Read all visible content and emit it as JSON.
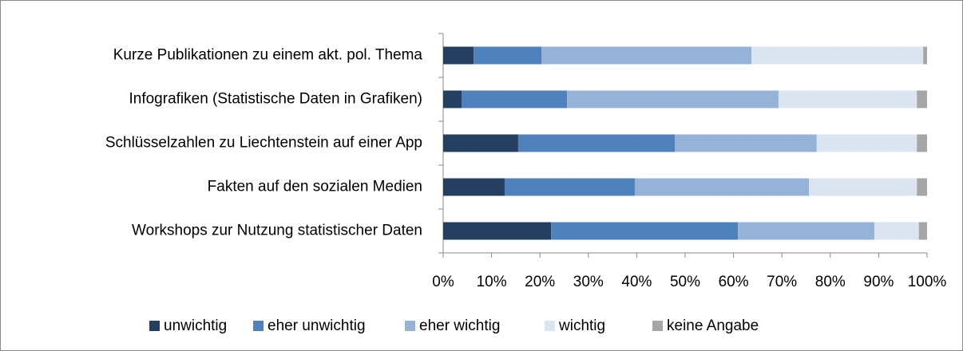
{
  "chart_data": {
    "type": "stacked_barh",
    "categories": [
      "Kurze Publikationen zu einem akt. pol. Thema",
      "Infografiken (Statistische Daten in Grafiken)",
      "Schlüsselzahlen zu Liechtenstein auf einer App",
      "Fakten auf den sozialen Medien",
      "Workshops zur Nutzung statistischer Daten"
    ],
    "series": [
      {
        "name": "unwichtig",
        "color": "#243f60",
        "values": [
          6.3,
          3.8,
          15.5,
          12.7,
          22.3
        ]
      },
      {
        "name": "eher unwichtig",
        "color": "#4f81bd",
        "values": [
          14.0,
          21.8,
          32.4,
          26.9,
          38.6
        ]
      },
      {
        "name": "eher wichtig",
        "color": "#95b3d7",
        "values": [
          43.4,
          43.7,
          29.3,
          36.0,
          28.2
        ]
      },
      {
        "name": "wichtig",
        "color": "#dbe5f1",
        "values": [
          35.5,
          28.6,
          20.7,
          22.3,
          9.2
        ]
      },
      {
        "name": "keine Angabe",
        "color": "#a6a6a6",
        "values": [
          0.8,
          2.1,
          2.1,
          2.1,
          1.7
        ]
      }
    ],
    "xlim": [
      0,
      100
    ],
    "xticks": [
      {
        "value": 0,
        "label": "0%"
      },
      {
        "value": 10,
        "label": "10%"
      },
      {
        "value": 20,
        "label": "20%"
      },
      {
        "value": 30,
        "label": "30%"
      },
      {
        "value": 40,
        "label": "40%"
      },
      {
        "value": 50,
        "label": "50%"
      },
      {
        "value": 60,
        "label": "60%"
      },
      {
        "value": 70,
        "label": "70%"
      },
      {
        "value": 80,
        "label": "80%"
      },
      {
        "value": 90,
        "label": "90%"
      },
      {
        "value": 100,
        "label": "100%"
      }
    ],
    "legend": "bottom"
  }
}
